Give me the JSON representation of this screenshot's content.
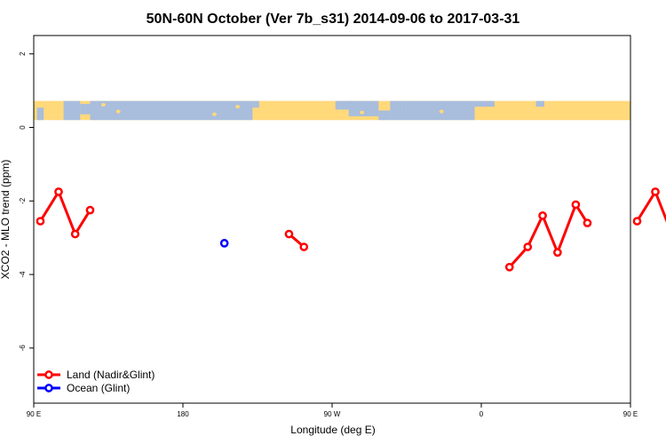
{
  "chart_data": {
    "type": "line",
    "title": "50N-60N October (Ver 7b_s31)   2014-09-06 to 2017-03-31",
    "xlabel": "Longitude (deg E)",
    "ylabel": "XCO2 - MLO trend (ppm)",
    "xlim": [
      90,
      450
    ],
    "ylim": [
      -7.5,
      2.5
    ],
    "x_ticks": [
      {
        "value": 90,
        "label": "90 E"
      },
      {
        "value": 180,
        "label": "180"
      },
      {
        "value": 270,
        "label": "90 W"
      },
      {
        "value": 360,
        "label": "0"
      },
      {
        "value": 450,
        "label": "90 E"
      },
      {
        "value": 540,
        "label": "180"
      }
    ],
    "y_ticks": [
      {
        "value": 2,
        "label": "2"
      },
      {
        "value": 0,
        "label": "0"
      },
      {
        "value": -2,
        "label": "-2"
      },
      {
        "value": -4,
        "label": "-4"
      },
      {
        "value": -6,
        "label": "-6"
      }
    ],
    "map_strip": {
      "y_range": [
        0.2,
        0.72
      ],
      "land_color": "#FFD97A",
      "ocean_color": "#A9BDDD"
    },
    "series": [
      {
        "name": "Land (Nadir&Glint)",
        "color": "#FF0000",
        "segments": [
          [
            [
              94,
              -2.55
            ],
            [
              105,
              -1.75
            ],
            [
              115,
              -2.9
            ],
            [
              124,
              -2.25
            ]
          ],
          [
            [
              244,
              -2.9
            ],
            [
              253,
              -3.25
            ]
          ],
          [
            [
              377,
              -3.8
            ],
            [
              388,
              -3.25
            ],
            [
              397,
              -2.4
            ],
            [
              406,
              -3.4
            ],
            [
              417,
              -2.1
            ],
            [
              424,
              -2.6
            ]
          ],
          [
            [
              454,
              -2.55
            ],
            [
              465,
              -1.75
            ],
            [
              475,
              -2.9
            ],
            [
              484,
              -2.25
            ]
          ]
        ]
      },
      {
        "name": "Ocean (Glint)",
        "color": "#0000FF",
        "segments": [
          [
            [
              205,
              -3.15
            ]
          ]
        ]
      }
    ],
    "legend_position": "bottom-left",
    "grid": false
  }
}
